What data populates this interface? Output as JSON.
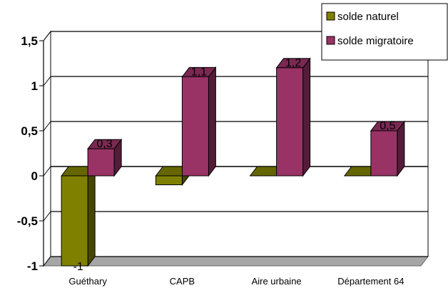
{
  "chart_data": {
    "type": "bar",
    "categories": [
      "Guéthary",
      "CAPB",
      "Aire urbaine",
      "Département 64"
    ],
    "series": [
      {
        "name": "solde naturel",
        "values": [
          -1,
          -0.1,
          0,
          0
        ],
        "color": "#808000",
        "labels": [
          "-1",
          "",
          "",
          ""
        ]
      },
      {
        "name": "solde migratoire",
        "values": [
          0.3,
          1.1,
          1.2,
          0.5
        ],
        "color": "#993366",
        "labels": [
          "0,3",
          "1,1",
          "1,2",
          "0,5"
        ]
      }
    ],
    "y_ticks": [
      1.5,
      1,
      0.5,
      0,
      -0.5,
      -1
    ],
    "y_tick_labels": [
      "1,5",
      "1",
      "0,5",
      "0",
      "-0,5",
      "-1"
    ],
    "ylim": [
      -1,
      1.5
    ],
    "grid": true,
    "legend_position": "top-right",
    "title": "",
    "xlabel": "",
    "ylabel": ""
  }
}
